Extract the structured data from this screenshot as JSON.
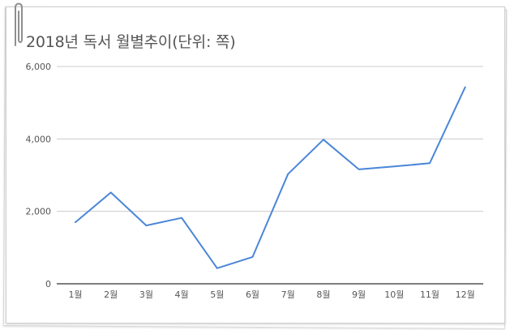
{
  "chart_data": {
    "type": "line",
    "title": "2018년 독서 월별추이(단위: 쪽)",
    "xlabel": "",
    "ylabel": "",
    "categories": [
      "1월",
      "2월",
      "3월",
      "4월",
      "5월",
      "6월",
      "7월",
      "8월",
      "9월",
      "10월",
      "11월",
      "12월"
    ],
    "series": [
      {
        "values": [
          1700,
          2520,
          1610,
          1820,
          430,
          740,
          3030,
          3980,
          3160,
          3240,
          3330,
          5430
        ]
      }
    ],
    "ylim": [
      0,
      6000
    ],
    "yticks": [
      0,
      2000,
      4000,
      6000
    ],
    "ytick_labels": [
      "0",
      "2,000",
      "4,000",
      "6,000"
    ],
    "grid": true,
    "legend": "none",
    "colors": {
      "line": "#4a86d8",
      "grid": "#cccccc",
      "axis": "#333333",
      "title": "#555555",
      "tick": "#555555"
    }
  }
}
